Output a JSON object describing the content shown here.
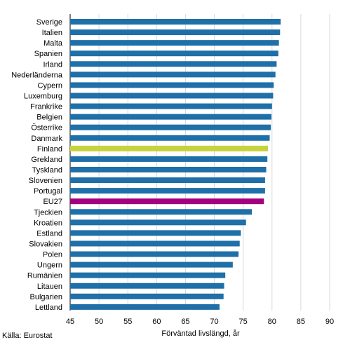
{
  "source": "Källa: Eurostat",
  "chart_data": {
    "type": "bar",
    "orientation": "horizontal",
    "categories": [
      "Sverige",
      "Italien",
      "Malta",
      "Spanien",
      "Irland",
      "Nederländerna",
      "Cypern",
      "Luxemburg",
      "Frankrike",
      "Belgien",
      "Österrike",
      "Danmark",
      "Finland",
      "Grekland",
      "Tyskland",
      "Slovenien",
      "Portugal",
      "EU27",
      "Tjeckien",
      "Kroatien",
      "Estland",
      "Slovakien",
      "Polen",
      "Ungern",
      "Rumänien",
      "Litauen",
      "Bulgarien",
      "Lettland"
    ],
    "values": [
      81.5,
      81.4,
      81.2,
      81.1,
      80.8,
      80.6,
      80.3,
      80.2,
      80.0,
      79.9,
      79.8,
      79.6,
      79.3,
      79.2,
      79.0,
      78.8,
      78.8,
      78.6,
      76.5,
      75.5,
      74.6,
      74.4,
      74.2,
      73.2,
      71.9,
      71.7,
      71.6,
      70.9
    ],
    "colors": {
      "default": "#1f6fa8",
      "Finland": "#c8d23c",
      "EU27": "#a3007d"
    },
    "xlabel": "Förväntad livslängd, år",
    "ylabel": "",
    "xlim": [
      45,
      90
    ],
    "xticks": [
      45,
      50,
      55,
      60,
      65,
      70,
      75,
      80,
      85,
      90
    ],
    "grid": "vertical"
  }
}
